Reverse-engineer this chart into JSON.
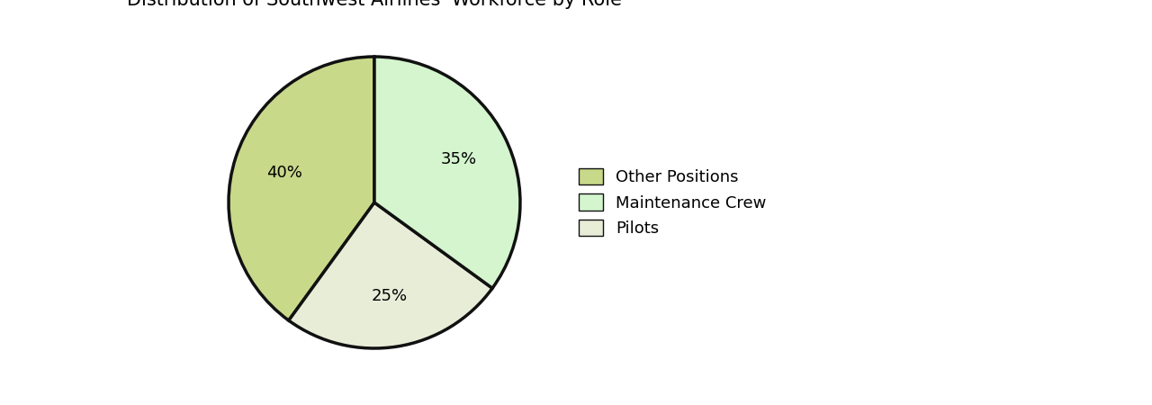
{
  "title_fontsize": 15,
  "slices": [
    {
      "label": "Other Positions",
      "value": 40,
      "color": "#c8d98a"
    },
    {
      "label": "Pilots",
      "value": 25,
      "color": "#e8edd8"
    },
    {
      "label": "Maintenance Crew",
      "value": 35,
      "color": "#d4f5ce"
    }
  ],
  "legend_order": [
    "Other Positions",
    "Maintenance Crew",
    "Pilots"
  ],
  "legend_colors": {
    "Other Positions": "#c8d98a",
    "Maintenance Crew": "#d4f5ce",
    "Pilots": "#e8edd8"
  },
  "startangle": 90,
  "edgecolor": "#111111",
  "linewidth": 2.5,
  "autopct_fontsize": 13,
  "legend_fontsize": 13,
  "background_color": "#ffffff"
}
